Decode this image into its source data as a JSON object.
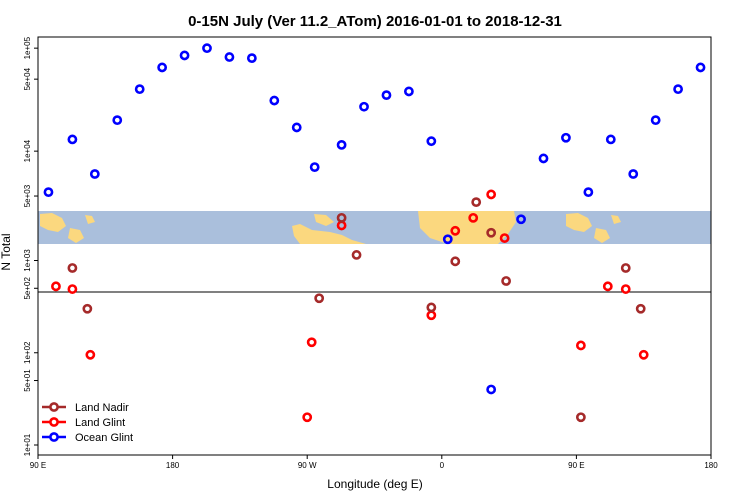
{
  "chart_data": {
    "type": "scatter",
    "title": "0-15N July (Ver 11.2_ATom)   2016-01-01 to 2018-12-31",
    "xlabel": "Longitude (deg E)",
    "ylabel": "N Total",
    "x_ticks": [
      {
        "value": 90,
        "label": "90 E"
      },
      {
        "value": 180,
        "label": "180"
      },
      {
        "value": 270,
        "label": "90 W"
      },
      {
        "value": 360,
        "label": "0"
      },
      {
        "value": 450,
        "label": "90 E"
      },
      {
        "value": 540,
        "label": "180"
      }
    ],
    "xlim": [
      90,
      540
    ],
    "y_scale": "log",
    "y_ticks_upper": [
      {
        "value": 10000,
        "label": "1e+04"
      },
      {
        "value": 50000,
        "label": "5e+04"
      },
      {
        "value": 100000,
        "label": "1e+05"
      }
    ],
    "y_ticks_lower": [
      {
        "value": 10,
        "label": "1e+01"
      },
      {
        "value": 50,
        "label": "5e+01"
      },
      {
        "value": 100,
        "label": "1e+02"
      },
      {
        "value": 500,
        "label": "5e+02"
      },
      {
        "value": 1000,
        "label": "1e+03"
      },
      {
        "value": 5000,
        "label": "5e+03"
      }
    ],
    "ylim_upper": [
      3000,
      120000
    ],
    "ylim_lower": [
      10,
      1300
    ],
    "background": "map strip (ocean #aabfdc, land #fbd87f) between the two panels",
    "legend": {
      "position": "bottom-left",
      "entries": [
        "Land Nadir",
        "Land Glint",
        "Ocean Glint"
      ]
    },
    "series": [
      {
        "name": "Ocean Glint",
        "color": "#0000ff",
        "points": [
          {
            "x": 97,
            "y": 4000
          },
          {
            "x": 113,
            "y": 13000
          },
          {
            "x": 128,
            "y": 6000
          },
          {
            "x": 143,
            "y": 20000
          },
          {
            "x": 158,
            "y": 40000
          },
          {
            "x": 173,
            "y": 65000
          },
          {
            "x": 188,
            "y": 85000
          },
          {
            "x": 203,
            "y": 100000
          },
          {
            "x": 218,
            "y": 82000
          },
          {
            "x": 233,
            "y": 80000
          },
          {
            "x": 248,
            "y": 31000
          },
          {
            "x": 263,
            "y": 17000
          },
          {
            "x": 275,
            "y": 7000
          },
          {
            "x": 293,
            "y": 11500
          },
          {
            "x": 308,
            "y": 27000
          },
          {
            "x": 323,
            "y": 35000
          },
          {
            "x": 338,
            "y": 38000
          },
          {
            "x": 353,
            "y": 12500
          },
          {
            "x": 364,
            "y": 1700
          },
          {
            "x": 393,
            "y": 40
          },
          {
            "x": 413,
            "y": 2800
          },
          {
            "x": 428,
            "y": 8500
          },
          {
            "x": 443,
            "y": 13500
          },
          {
            "x": 458,
            "y": 4000
          },
          {
            "x": 473,
            "y": 13000
          },
          {
            "x": 488,
            "y": 6000
          },
          {
            "x": 503,
            "y": 20000
          },
          {
            "x": 518,
            "y": 40000
          },
          {
            "x": 533,
            "y": 65000
          }
        ]
      },
      {
        "name": "Land Glint",
        "color": "#ff0000",
        "points": [
          {
            "x": 102,
            "y": 525
          },
          {
            "x": 113,
            "y": 490
          },
          {
            "x": 125,
            "y": 95
          },
          {
            "x": 270,
            "y": 20
          },
          {
            "x": 273,
            "y": 130
          },
          {
            "x": 293,
            "y": 2400
          },
          {
            "x": 353,
            "y": 255
          },
          {
            "x": 369,
            "y": 2100
          },
          {
            "x": 381,
            "y": 2900
          },
          {
            "x": 393,
            "y": 3800
          },
          {
            "x": 402,
            "y": 1750
          },
          {
            "x": 453,
            "y": 120
          },
          {
            "x": 471,
            "y": 525
          },
          {
            "x": 483,
            "y": 490
          },
          {
            "x": 495,
            "y": 95
          }
        ]
      },
      {
        "name": "Land Nadir",
        "color": "#a52a2a",
        "points": [
          {
            "x": 113,
            "y": 830
          },
          {
            "x": 123,
            "y": 300
          },
          {
            "x": 278,
            "y": 390
          },
          {
            "x": 293,
            "y": 2900
          },
          {
            "x": 303,
            "y": 1150
          },
          {
            "x": 353,
            "y": 310
          },
          {
            "x": 369,
            "y": 980
          },
          {
            "x": 383,
            "y": 3200
          },
          {
            "x": 393,
            "y": 2000
          },
          {
            "x": 403,
            "y": 600
          },
          {
            "x": 453,
            "y": 20
          },
          {
            "x": 483,
            "y": 830
          },
          {
            "x": 493,
            "y": 300
          }
        ]
      }
    ]
  }
}
